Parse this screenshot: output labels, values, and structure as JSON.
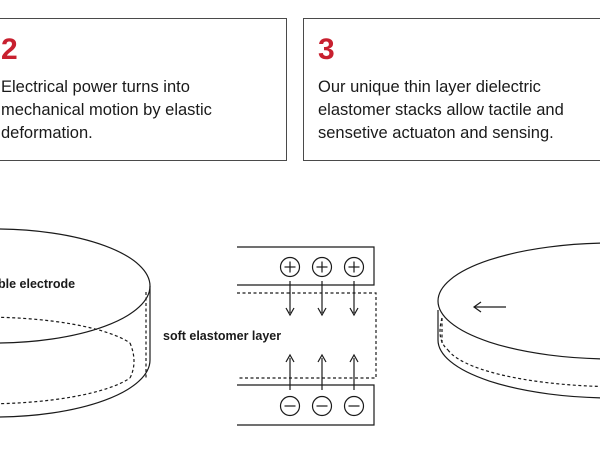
{
  "steps": [
    {
      "number": "2",
      "text": "Electrical power turns into\nmechanical motion by elastic\ndeformation."
    },
    {
      "number": "3",
      "text": "Our unique thin layer dielectric\nelastomer stacks allow tactile and\nsensetive actuaton and sensing."
    }
  ],
  "diagram": {
    "left_label": "ble electrode",
    "middle_label": "soft elastomer layer",
    "plus_symbol": "+",
    "minus_symbol": "−",
    "arrow_symbol": "←"
  },
  "colors": {
    "accent": "#c8202f",
    "line": "#1a1a1a",
    "border": "#4a4a4a"
  }
}
